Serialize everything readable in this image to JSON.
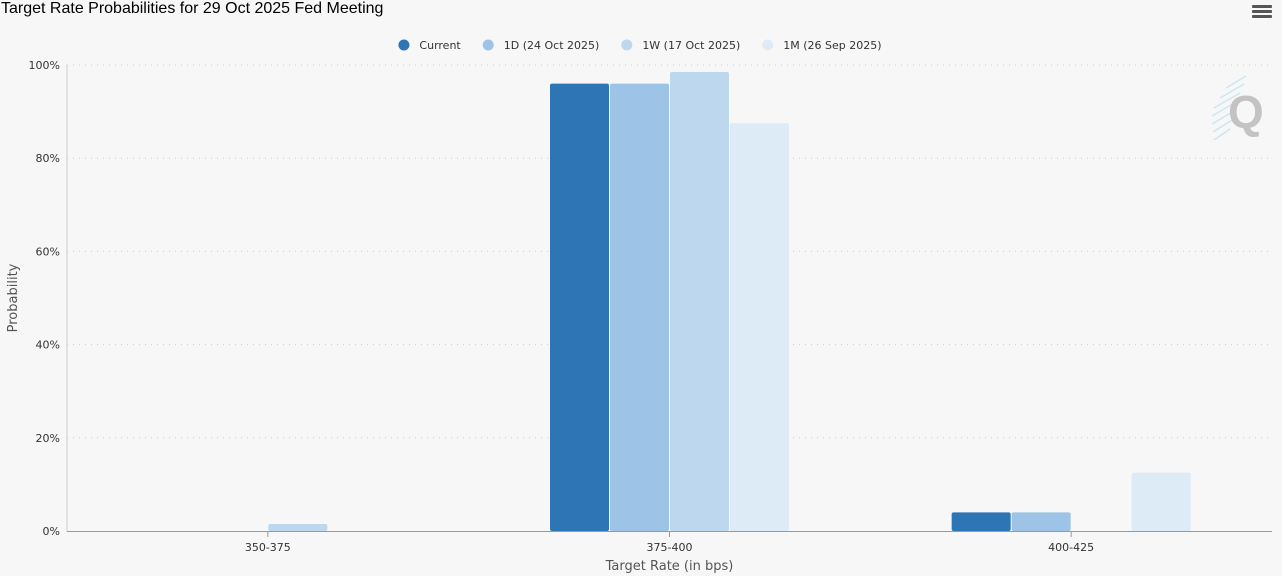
{
  "header": {
    "title": "Target Rate Probabilities for 29 Oct 2025 Fed Meeting",
    "menu_icon": "hamburger-menu-icon"
  },
  "watermark": {
    "letter": "Q"
  },
  "chart_data": {
    "type": "bar",
    "title": "Target Rate Probabilities for 29 Oct 2025 Fed Meeting",
    "xlabel": "Target Rate (in bps)",
    "ylabel": "Probability",
    "ylim": [
      0,
      100
    ],
    "yticks": [
      "0%",
      "20%",
      "40%",
      "60%",
      "80%",
      "100%"
    ],
    "ytick_values": [
      0,
      20,
      40,
      60,
      80,
      100
    ],
    "grid": true,
    "legend_position": "top-center",
    "categories": [
      "350-375",
      "375-400",
      "400-425"
    ],
    "series": [
      {
        "name": "Current",
        "color": "#2e75b6",
        "values": [
          0,
          96.0,
          4.0
        ]
      },
      {
        "name": "1D (24 Oct 2025)",
        "color": "#9dc3e6",
        "values": [
          0,
          96.0,
          4.0
        ]
      },
      {
        "name": "1W (17 Oct 2025)",
        "color": "#bdd7ee",
        "values": [
          1.5,
          98.5,
          0
        ]
      },
      {
        "name": "1M (26 Sep 2025)",
        "color": "#ddebf7",
        "values": [
          0,
          87.5,
          12.5
        ]
      }
    ]
  }
}
